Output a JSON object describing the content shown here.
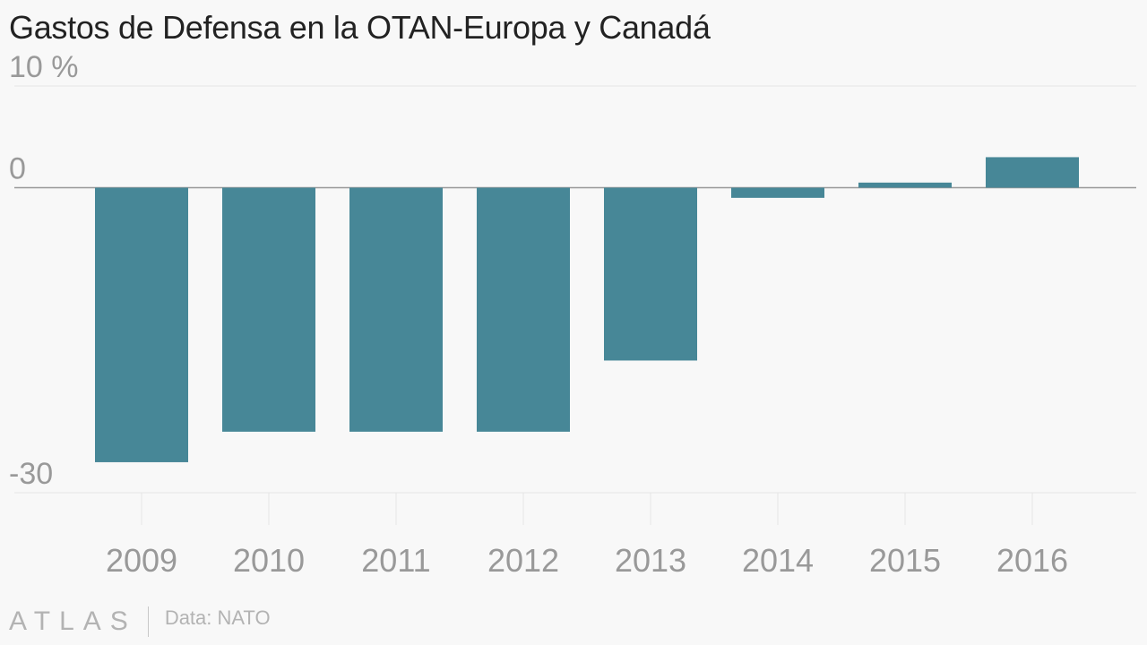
{
  "title": "Gastos de Defensa en la OTAN-Europa y Canadá",
  "footer": {
    "logo": "ATLAS",
    "source": "Data: NATO"
  },
  "colors": {
    "bar": "#478797",
    "grid": "#e6e6e6",
    "zero_line": "#999999",
    "tick_text": "#999999"
  },
  "chart_data": {
    "type": "bar",
    "title": "Gastos de Defensa en la OTAN-Europa y Canadá",
    "xlabel": "",
    "ylabel": "",
    "categories": [
      "2009",
      "2010",
      "2011",
      "2012",
      "2013",
      "2014",
      "2015",
      "2016"
    ],
    "values": [
      -27,
      -24,
      -24,
      -24,
      -17,
      -1,
      0.5,
      3
    ],
    "ylim": [
      -30,
      10
    ],
    "yticks": [
      {
        "value": 10,
        "label": "10 %"
      },
      {
        "value": 0,
        "label": "0"
      },
      {
        "value": -30,
        "label": "-30"
      }
    ],
    "grid": true,
    "legend": "none"
  }
}
